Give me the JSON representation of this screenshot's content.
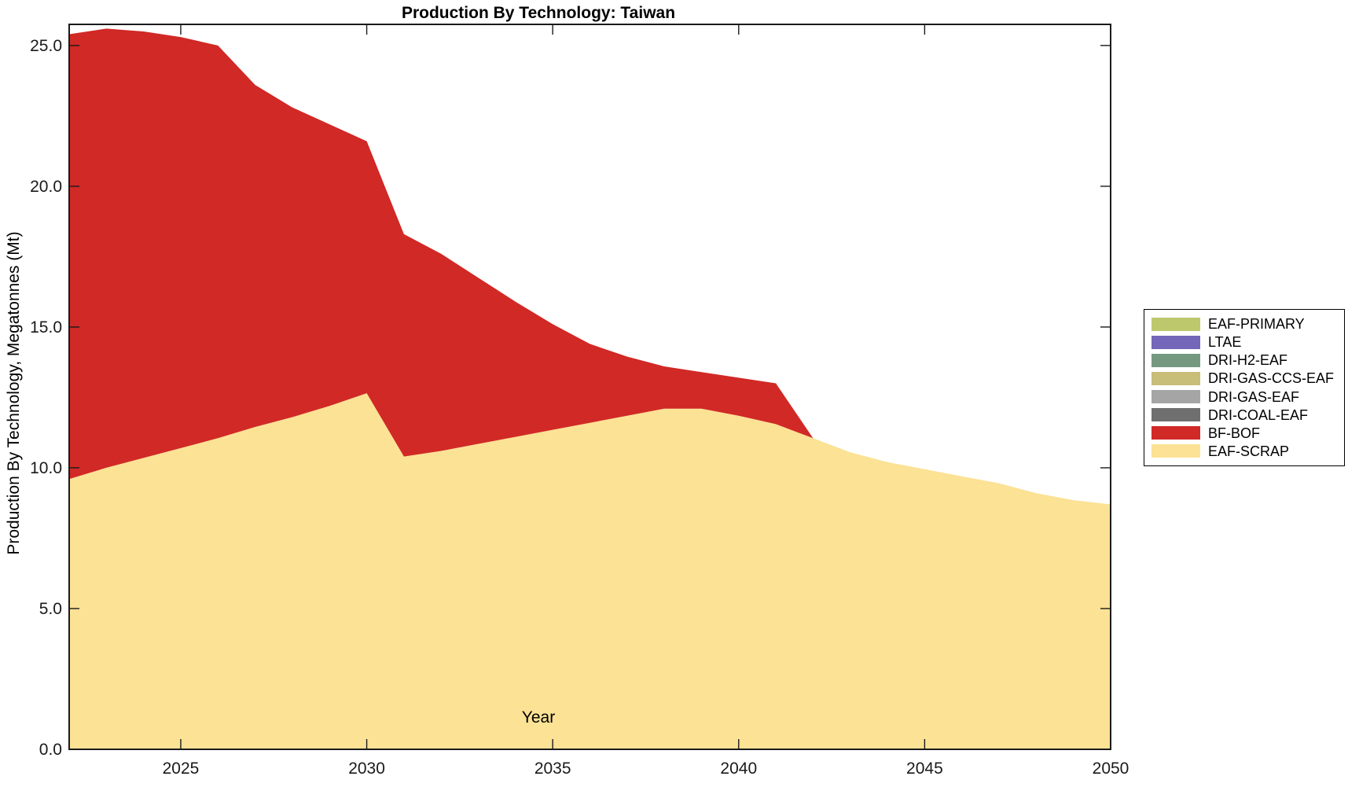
{
  "chart_data": {
    "type": "area",
    "stacked": true,
    "title": "Production By Technology: Taiwan",
    "xlabel": "Year",
    "ylabel": "Production By Technology, Megatonnes (Mt)",
    "grid": false,
    "axis_color": "#1a1a1a",
    "xlim": [
      2022,
      2050
    ],
    "ylim": [
      0,
      25.75
    ],
    "xticks": {
      "values": [
        2025,
        2030,
        2035,
        2040,
        2045,
        2050
      ],
      "labels": [
        "2025",
        "2030",
        "2035",
        "2040",
        "2045",
        "2050"
      ]
    },
    "yticks": {
      "values": [
        0,
        5,
        10,
        15,
        20,
        25
      ],
      "labels": [
        "0.0",
        "5.0",
        "10.0",
        "15.0",
        "20.0",
        "25.0"
      ]
    },
    "x": [
      2022,
      2023,
      2024,
      2025,
      2026,
      2027,
      2028,
      2029,
      2030,
      2031,
      2032,
      2033,
      2034,
      2035,
      2036,
      2037,
      2038,
      2039,
      2040,
      2041,
      2042,
      2043,
      2044,
      2045,
      2046,
      2047,
      2048,
      2049,
      2050
    ],
    "series_bottom_to_top": [
      {
        "name": "EAF-SCRAP",
        "color": "#fbe294",
        "values": [
          9.6,
          10.0,
          10.35,
          10.7,
          11.05,
          11.45,
          11.8,
          12.2,
          12.65,
          10.4,
          10.6,
          10.85,
          11.1,
          11.35,
          11.6,
          11.85,
          12.1,
          12.1,
          11.85,
          11.55,
          11.05,
          10.55,
          10.2,
          9.95,
          9.7,
          9.45,
          9.1,
          8.85,
          8.7
        ]
      },
      {
        "name": "BF-BOF",
        "color": "#d12926",
        "values": [
          15.8,
          15.6,
          15.15,
          14.6,
          13.95,
          12.15,
          11.0,
          10.0,
          8.95,
          7.9,
          7.0,
          5.9,
          4.8,
          3.75,
          2.8,
          2.1,
          1.5,
          1.3,
          1.35,
          1.45,
          0,
          0,
          0,
          0,
          0,
          0,
          0,
          0,
          0
        ]
      },
      {
        "name": "DRI-COAL-EAF",
        "color": "#6f6f6f",
        "values": [
          0,
          0,
          0,
          0,
          0,
          0,
          0,
          0,
          0,
          0,
          0,
          0,
          0,
          0,
          0,
          0,
          0,
          0,
          0,
          0,
          0,
          0,
          0,
          0,
          0,
          0,
          0,
          0,
          0
        ]
      },
      {
        "name": "DRI-GAS-EAF",
        "color": "#a5a5a5",
        "values": [
          0,
          0,
          0,
          0,
          0,
          0,
          0,
          0,
          0,
          0,
          0,
          0,
          0,
          0,
          0,
          0,
          0,
          0,
          0,
          0,
          0,
          0,
          0,
          0,
          0,
          0,
          0,
          0,
          0
        ]
      },
      {
        "name": "DRI-GAS-CCS-EAF",
        "color": "#c8bd79",
        "values": [
          0,
          0,
          0,
          0,
          0,
          0,
          0,
          0,
          0,
          0,
          0,
          0,
          0,
          0,
          0,
          0,
          0,
          0,
          0,
          0,
          0,
          0,
          0,
          0,
          0,
          0,
          0,
          0,
          0
        ]
      },
      {
        "name": "DRI-H2-EAF",
        "color": "#75997f",
        "values": [
          0,
          0,
          0,
          0,
          0,
          0,
          0,
          0,
          0,
          0,
          0,
          0,
          0,
          0,
          0,
          0,
          0,
          0,
          0,
          0,
          0,
          0,
          0,
          0,
          0,
          0,
          0,
          0,
          0
        ]
      },
      {
        "name": "LTAE",
        "color": "#7467b9",
        "values": [
          0,
          0,
          0,
          0,
          0,
          0,
          0,
          0,
          0,
          0,
          0,
          0,
          0,
          0,
          0,
          0,
          0,
          0,
          0,
          0,
          0,
          0,
          0,
          0,
          0,
          0,
          0,
          0,
          0
        ]
      },
      {
        "name": "EAF-PRIMARY",
        "color": "#bdc76b",
        "values": [
          0,
          0,
          0,
          0,
          0,
          0,
          0,
          0,
          0,
          0,
          0,
          0,
          0,
          0,
          0,
          0,
          0,
          0,
          0,
          0,
          0,
          0,
          0,
          0,
          0,
          0,
          0,
          0,
          0
        ]
      }
    ],
    "legend": {
      "position": "outside-right",
      "entries_top_to_bottom": [
        {
          "label": "EAF-PRIMARY",
          "color": "#bdc76b"
        },
        {
          "label": "LTAE",
          "color": "#7467b9"
        },
        {
          "label": "DRI-H2-EAF",
          "color": "#75997f"
        },
        {
          "label": "DRI-GAS-CCS-EAF",
          "color": "#c8bd79"
        },
        {
          "label": "DRI-GAS-EAF",
          "color": "#a5a5a5"
        },
        {
          "label": "DRI-COAL-EAF",
          "color": "#6f6f6f"
        },
        {
          "label": "BF-BOF",
          "color": "#d12926"
        },
        {
          "label": "EAF-SCRAP",
          "color": "#fbe294"
        }
      ]
    }
  }
}
